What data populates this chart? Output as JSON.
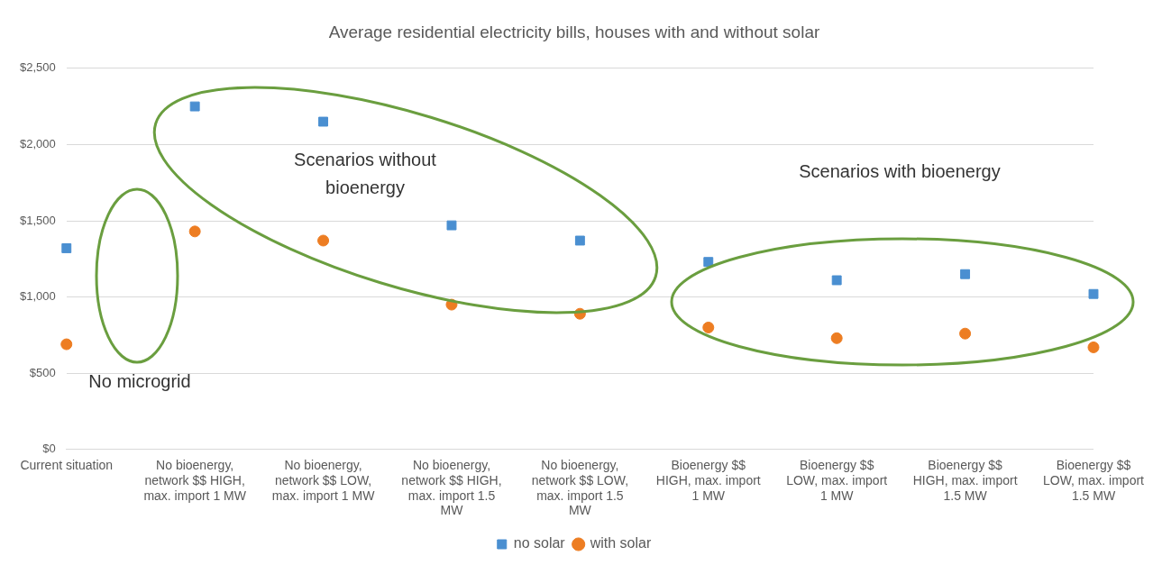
{
  "chart_data": {
    "type": "scatter",
    "title": "Average residential electricity bills, houses with and without solar",
    "categories": [
      "Current situation",
      "No bioenergy, network $$ HIGH, max. import 1 MW",
      "No bioenergy, network $$ LOW, max. import 1 MW",
      "No bioenergy, network $$ HIGH, max. import 1.5 MW",
      "No bioenergy, network $$ LOW, max. import 1.5 MW",
      "Bioenergy $$ HIGH, max. import 1 MW",
      "Bioenergy $$ LOW, max. import 1 MW",
      "Bioenergy $$ HIGH, max. import 1.5 MW",
      "Bioenergy $$ LOW, max. import 1.5 MW"
    ],
    "series": [
      {
        "name": "no solar",
        "color": "#4a8fd1",
        "marker": "square",
        "values": [
          1320,
          2250,
          2150,
          1470,
          1370,
          1230,
          1110,
          1150,
          1020
        ]
      },
      {
        "name": "with solar",
        "color": "#ed7d22",
        "marker": "circle",
        "values": [
          690,
          1430,
          1370,
          950,
          890,
          800,
          730,
          760,
          670
        ]
      }
    ],
    "ylim": [
      0,
      2500
    ],
    "yticks": [
      {
        "value": 0,
        "label": "$0"
      },
      {
        "value": 500,
        "label": "$500"
      },
      {
        "value": 1000,
        "label": "$1,000"
      },
      {
        "value": 1500,
        "label": "$1,500"
      },
      {
        "value": 2000,
        "label": "$2,000"
      },
      {
        "value": 2500,
        "label": "$2,500"
      }
    ],
    "grid": "y",
    "legend": "bottom",
    "annotations": [
      "No microgrid",
      "Scenarios without bioenergy",
      "Scenarios with bioenergy"
    ]
  }
}
